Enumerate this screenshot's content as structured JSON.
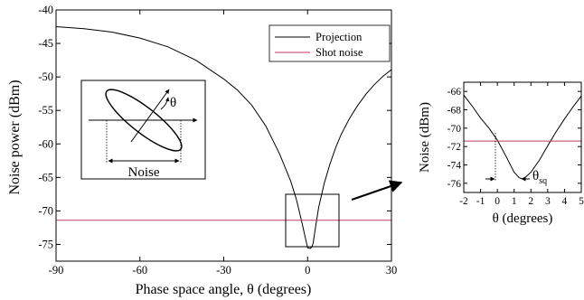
{
  "chart_data": [
    {
      "type": "line",
      "xlabel": "Phase space angle, θ (degrees)",
      "ylabel": "Noise power (dBm)",
      "xlim": [
        -90,
        30
      ],
      "ylim": [
        -77.5,
        -40
      ],
      "xticks": [
        -90,
        -60,
        -30,
        0,
        30
      ],
      "yticks": [
        -40,
        -45,
        -50,
        -55,
        -60,
        -65,
        -70,
        -75
      ],
      "legend_position": "top-right",
      "grid": false,
      "series": [
        {
          "name": "Projection",
          "color": "#000000",
          "x": [
            -90,
            -80,
            -70,
            -60,
            -50,
            -40,
            -30,
            -25,
            -20,
            -15,
            -10,
            -6,
            -4,
            -2,
            -1,
            0,
            1,
            1.5,
            2,
            3,
            4,
            6,
            8,
            10,
            12,
            15,
            18,
            21,
            24,
            27,
            30
          ],
          "y": [
            -42.5,
            -42.8,
            -43.3,
            -44.2,
            -45.5,
            -47.5,
            -50.3,
            -52.0,
            -54.2,
            -57.3,
            -61.5,
            -65.6,
            -68.3,
            -71.8,
            -73.7,
            -75.5,
            -75.6,
            -75.4,
            -74.8,
            -72.0,
            -69.4,
            -65.8,
            -63.0,
            -60.6,
            -58.6,
            -56.2,
            -54.2,
            -52.5,
            -51.1,
            -49.9,
            -48.9
          ]
        },
        {
          "name": "Shot noise",
          "color": "#c0395e",
          "x": [
            -90,
            30
          ],
          "y": [
            -71.4,
            -71.4
          ]
        }
      ],
      "annotations": [
        "θ",
        "Noise"
      ]
    },
    {
      "type": "line",
      "xlabel": "θ (degrees)",
      "ylabel": "Noise (dBm)",
      "xlim": [
        -2,
        5
      ],
      "ylim": [
        -77,
        -65
      ],
      "xticks": [
        -2,
        -1,
        0,
        1,
        2,
        3,
        4,
        5
      ],
      "yticks": [
        -66,
        -68,
        -70,
        -72,
        -74,
        -76
      ],
      "grid": false,
      "series": [
        {
          "name": "Projection",
          "color": "#000000",
          "x": [
            -2,
            -1.5,
            -1,
            -0.5,
            0,
            0.5,
            1,
            1.3,
            1.5,
            1.7,
            2,
            2.5,
            3,
            3.5,
            4,
            4.5,
            5
          ],
          "y": [
            -66.4,
            -67.6,
            -68.9,
            -70.0,
            -71.3,
            -73.0,
            -74.8,
            -75.4,
            -75.5,
            -75.3,
            -74.8,
            -73.5,
            -71.9,
            -70.4,
            -69.0,
            -67.7,
            -66.5
          ]
        },
        {
          "name": "Shot noise",
          "color": "#c0395e",
          "x": [
            -2,
            5
          ],
          "y": [
            -71.4,
            -71.4
          ]
        }
      ],
      "annotations": [
        "θsq"
      ]
    }
  ],
  "text": {
    "legend_projection": "Projection",
    "legend_shot": "Shot noise",
    "inset_theta": "θ",
    "inset_noise": "Noise",
    "zoom_theta": "θ",
    "zoom_sub": "sq"
  }
}
